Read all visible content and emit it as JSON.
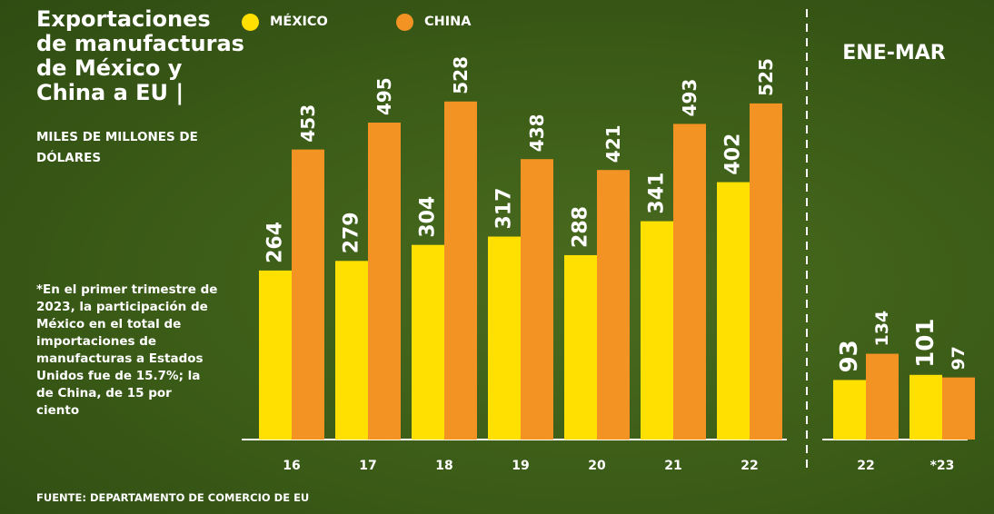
{
  "title": "Exportaciones de manufacturas de México y China a EU |",
  "subtitle": "MILES DE MILLONES DE DÓLARES",
  "note": "*En el primer trimestre de 2023, la participación de México en el total de importaciones de manufacturas a Estados Unidos fue de 15.7%; la de China, de 15 por ciento",
  "source": "FUENTE: DEPARTAMENTO DE COMERCIO DE EU",
  "colors": {
    "mexico": "#ffe000",
    "china": "#f39323"
  },
  "chart_data": [
    {
      "type": "bar",
      "categories": [
        "16",
        "17",
        "18",
        "19",
        "20",
        "21",
        "22"
      ],
      "series": [
        {
          "name": "MÉXICO",
          "values": [
            264,
            279,
            304,
            317,
            288,
            341,
            402
          ]
        },
        {
          "name": "CHINA",
          "values": [
            453,
            495,
            528,
            438,
            421,
            493,
            525
          ]
        }
      ],
      "legend": "top"
    },
    {
      "type": "bar",
      "title": "ENE-MAR",
      "categories": [
        "22",
        "*23"
      ],
      "series": [
        {
          "name": "MÉXICO",
          "values": [
            93,
            101
          ]
        },
        {
          "name": "CHINA",
          "values": [
            134,
            97
          ]
        }
      ]
    }
  ]
}
